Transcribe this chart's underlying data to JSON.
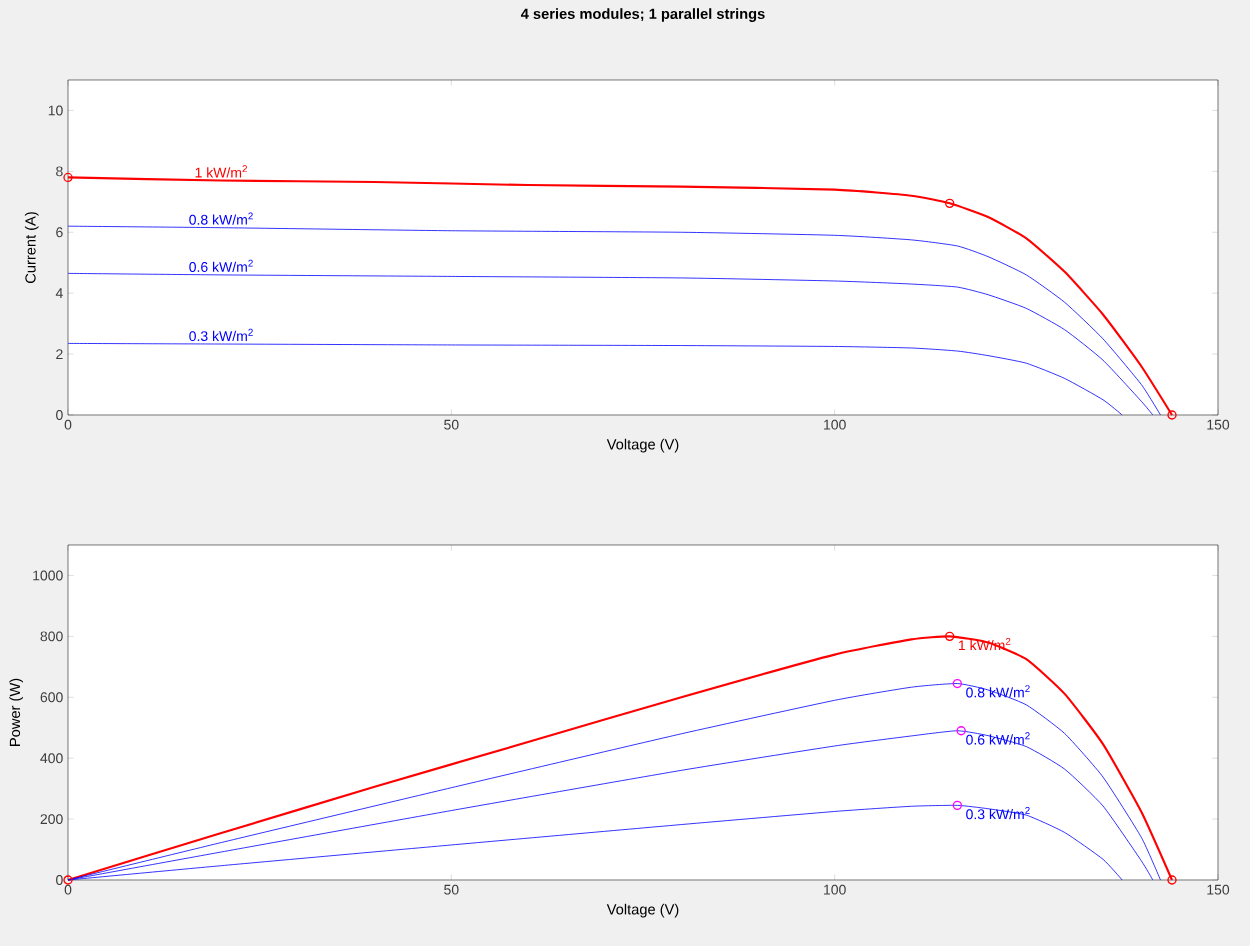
{
  "chart_data": [
    {
      "type": "line",
      "title": "4 series modules; 1 parallel strings",
      "xlabel": "Voltage (V)",
      "ylabel": "Current (A)",
      "xlim": [
        0,
        150
      ],
      "xticks": [
        0,
        50,
        100,
        150
      ],
      "ylim": [
        0,
        11
      ],
      "yticks": [
        0,
        2,
        4,
        6,
        8,
        10
      ],
      "grid": false,
      "series": [
        {
          "name": "1 kW/m$^{2}$",
          "color": "#ff0000",
          "x": [
            0,
            20,
            40,
            60,
            80,
            100,
            110,
            115,
            120,
            125,
            130,
            135,
            140,
            144
          ],
          "values": [
            7.8,
            7.7,
            7.65,
            7.55,
            7.5,
            7.4,
            7.2,
            6.95,
            6.5,
            5.8,
            4.7,
            3.3,
            1.6,
            0
          ]
        },
        {
          "name": "0.8 kW/m$^{2}$",
          "color": "#0000ff",
          "x": [
            0,
            20,
            50,
            80,
            100,
            110,
            116,
            120,
            125,
            130,
            135,
            140,
            142.5
          ],
          "values": [
            6.2,
            6.15,
            6.05,
            6.0,
            5.9,
            5.75,
            5.55,
            5.2,
            4.6,
            3.7,
            2.5,
            1.0,
            0
          ]
        },
        {
          "name": "0.6 kW/m$^{2}$",
          "color": "#0000ff",
          "x": [
            0,
            20,
            50,
            80,
            100,
            110,
            116,
            120,
            125,
            130,
            135,
            140,
            141.5
          ],
          "values": [
            4.65,
            4.6,
            4.55,
            4.5,
            4.4,
            4.3,
            4.2,
            3.95,
            3.5,
            2.8,
            1.8,
            0.45,
            0
          ]
        },
        {
          "name": "0.3 kW/m$^{2}$",
          "color": "#0000ff",
          "x": [
            0,
            20,
            50,
            80,
            100,
            110,
            116,
            120,
            125,
            130,
            135,
            137.5
          ],
          "values": [
            2.35,
            2.33,
            2.3,
            2.28,
            2.25,
            2.2,
            2.1,
            1.95,
            1.7,
            1.2,
            0.5,
            0
          ]
        },
        {
          "type": "scatter",
          "marker": "circle",
          "color": "#ff0000",
          "x": [
            0,
            115,
            144
          ],
          "values": [
            7.8,
            6.95,
            0
          ]
        }
      ]
    },
    {
      "type": "line",
      "xlabel": "Voltage (V)",
      "ylabel": "Power (W)",
      "xlim": [
        0,
        150
      ],
      "xticks": [
        0,
        50,
        100,
        150
      ],
      "ylim": [
        0,
        1100
      ],
      "yticks": [
        0,
        200,
        400,
        600,
        800,
        1000
      ],
      "grid": false,
      "series": [
        {
          "name": "1 kW/m$^{2}$",
          "color": "#ff0000",
          "x": [
            0,
            20,
            40,
            60,
            80,
            100,
            110,
            115,
            120,
            125,
            130,
            135,
            140,
            144
          ],
          "values": [
            0,
            154,
            306,
            453,
            600,
            740,
            790,
            800,
            780,
            725,
            611,
            446,
            224,
            0
          ]
        },
        {
          "name": "0.8 kW/m$^{2}$",
          "color": "#0000ff",
          "x": [
            0,
            20,
            50,
            80,
            100,
            110,
            116,
            120,
            125,
            130,
            135,
            140,
            142.5
          ],
          "values": [
            0,
            123,
            303,
            480,
            590,
            633,
            645,
            624,
            575,
            481,
            338,
            140,
            0
          ]
        },
        {
          "name": "0.6 kW/m$^{2}$",
          "color": "#0000ff",
          "x": [
            0,
            20,
            50,
            80,
            100,
            110,
            116,
            120,
            125,
            130,
            135,
            140,
            141.5
          ],
          "values": [
            0,
            92,
            228,
            360,
            440,
            473,
            490,
            474,
            438,
            364,
            243,
            63,
            0
          ]
        },
        {
          "name": "0.3 kW/m$^{2}$",
          "color": "#0000ff",
          "x": [
            0,
            20,
            50,
            80,
            100,
            110,
            116,
            120,
            125,
            130,
            135,
            137.5
          ],
          "values": [
            0,
            47,
            115,
            182,
            225,
            242,
            245,
            234,
            213,
            156,
            68,
            0
          ]
        },
        {
          "type": "scatter",
          "marker": "circle",
          "color": "#ff0000",
          "x": [
            0,
            115,
            144
          ],
          "values": [
            0,
            800,
            0
          ]
        },
        {
          "type": "scatter",
          "marker": "circle",
          "color": "#ff00ff",
          "x": [
            116,
            116.5,
            116
          ],
          "values": [
            645,
            490,
            245
          ]
        }
      ]
    }
  ]
}
